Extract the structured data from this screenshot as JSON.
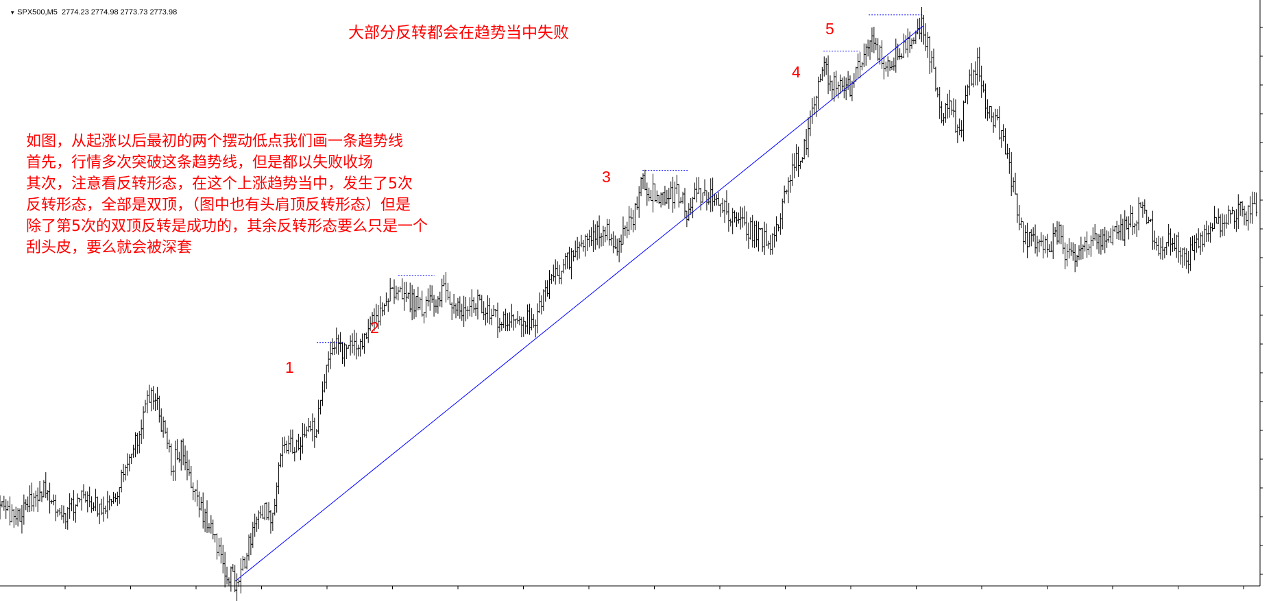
{
  "header": {
    "symbol": "SPX500,M5",
    "ohlc": "2774.23 2774.98 2773.73 2773.98"
  },
  "annotations": {
    "title": "大部分反转都会在趋势当中失败",
    "note_lines": [
      "如图，从起涨以后最初的两个摆动低点我们画一条趋势线",
      "首先，行情多次突破这条趋势线，但是都以失败收场",
      "其次，注意看反转形态，在这个上涨趋势当中，发生了5次",
      "反转形态，全部是双顶，（图中也有头肩顶反转形态）但是",
      "除了第5次的双顶反转是成功的，其余反转形态要么只是一个",
      "刮头皮，要么就会被深套"
    ],
    "labels": [
      "1",
      "2",
      "3",
      "4",
      "5"
    ]
  },
  "colors": {
    "bars": "#000000",
    "trendline": "#0000ff",
    "double_top_lines": "#0000ff",
    "annotation_text": "#ff0000",
    "background": "#ffffff"
  },
  "chart_data": {
    "type": "line",
    "series_style": "price bars (OHLC)",
    "symbol": "SPX500",
    "timeframe": "M5",
    "last_bar": {
      "open": 2774.23,
      "high": 2774.98,
      "low": 2773.73,
      "close": 2773.98
    },
    "price_path_relative": [
      [
        0,
        0.13
      ],
      [
        2,
        0.12
      ],
      [
        5,
        0.17
      ],
      [
        7,
        0.11
      ],
      [
        9,
        0.16
      ],
      [
        11,
        0.13
      ],
      [
        13,
        0.17
      ],
      [
        15,
        0.25
      ],
      [
        16,
        0.31
      ],
      [
        17,
        0.34
      ],
      [
        19,
        0.21
      ],
      [
        20,
        0.24
      ],
      [
        21,
        0.18
      ],
      [
        23,
        0.1
      ],
      [
        25,
        0.02
      ],
      [
        26,
        0.0
      ],
      [
        27,
        0.04
      ],
      [
        29,
        0.13
      ],
      [
        30,
        0.11
      ],
      [
        31,
        0.23
      ],
      [
        33,
        0.25
      ],
      [
        35,
        0.28
      ],
      [
        36,
        0.37
      ],
      [
        37,
        0.43
      ],
      [
        38,
        0.41
      ],
      [
        40,
        0.43
      ],
      [
        42,
        0.49
      ],
      [
        44,
        0.53
      ],
      [
        45,
        0.51
      ],
      [
        47,
        0.49
      ],
      [
        49,
        0.52
      ],
      [
        51,
        0.49
      ],
      [
        53,
        0.5
      ],
      [
        55,
        0.47
      ],
      [
        57,
        0.48
      ],
      [
        59,
        0.47
      ],
      [
        61,
        0.55
      ],
      [
        63,
        0.58
      ],
      [
        65,
        0.62
      ],
      [
        67,
        0.63
      ],
      [
        68,
        0.6
      ],
      [
        70,
        0.66
      ],
      [
        71,
        0.72
      ],
      [
        72,
        0.7
      ],
      [
        73,
        0.69
      ],
      [
        75,
        0.7
      ],
      [
        76,
        0.66
      ],
      [
        77,
        0.7
      ],
      [
        79,
        0.69
      ],
      [
        81,
        0.66
      ],
      [
        83,
        0.63
      ],
      [
        85,
        0.61
      ],
      [
        86,
        0.63
      ],
      [
        87,
        0.73
      ],
      [
        89,
        0.78
      ],
      [
        90,
        0.87
      ],
      [
        91,
        0.92
      ],
      [
        92,
        0.9
      ],
      [
        94,
        0.89
      ],
      [
        96,
        0.98
      ],
      [
        97,
        0.95
      ],
      [
        98,
        0.93
      ],
      [
        100,
        0.96
      ],
      [
        102,
        1.0
      ],
      [
        103,
        0.93
      ],
      [
        104,
        0.83
      ],
      [
        105,
        0.86
      ],
      [
        106,
        0.8
      ],
      [
        107,
        0.9
      ],
      [
        108,
        0.93
      ],
      [
        109,
        0.86
      ],
      [
        110,
        0.83
      ],
      [
        111,
        0.78
      ],
      [
        112,
        0.71
      ],
      [
        113,
        0.63
      ],
      [
        114,
        0.61
      ],
      [
        116,
        0.6
      ],
      [
        117,
        0.63
      ],
      [
        118,
        0.58
      ],
      [
        120,
        0.61
      ],
      [
        122,
        0.61
      ],
      [
        124,
        0.63
      ],
      [
        126,
        0.67
      ],
      [
        127,
        0.65
      ],
      [
        128,
        0.58
      ],
      [
        129,
        0.63
      ],
      [
        131,
        0.58
      ],
      [
        133,
        0.62
      ],
      [
        135,
        0.65
      ],
      [
        137,
        0.67
      ],
      [
        138,
        0.66
      ],
      [
        139,
        0.67
      ]
    ],
    "value_scale_note": "relative 0 = swing low, 1 = swing high",
    "trendline": {
      "from": [
        26,
        0.0
      ],
      "to": [
        102,
        1.0
      ]
    },
    "double_tops": [
      {
        "label": "1",
        "from": 35,
        "to": 38
      },
      {
        "label": "2",
        "from": 44,
        "to": 48
      },
      {
        "label": "3",
        "from": 71,
        "to": 76
      },
      {
        "label": "4",
        "from": 91,
        "to": 95
      },
      {
        "label": "5",
        "from": 96,
        "to": 102
      }
    ],
    "grid": false,
    "legend": "none"
  }
}
